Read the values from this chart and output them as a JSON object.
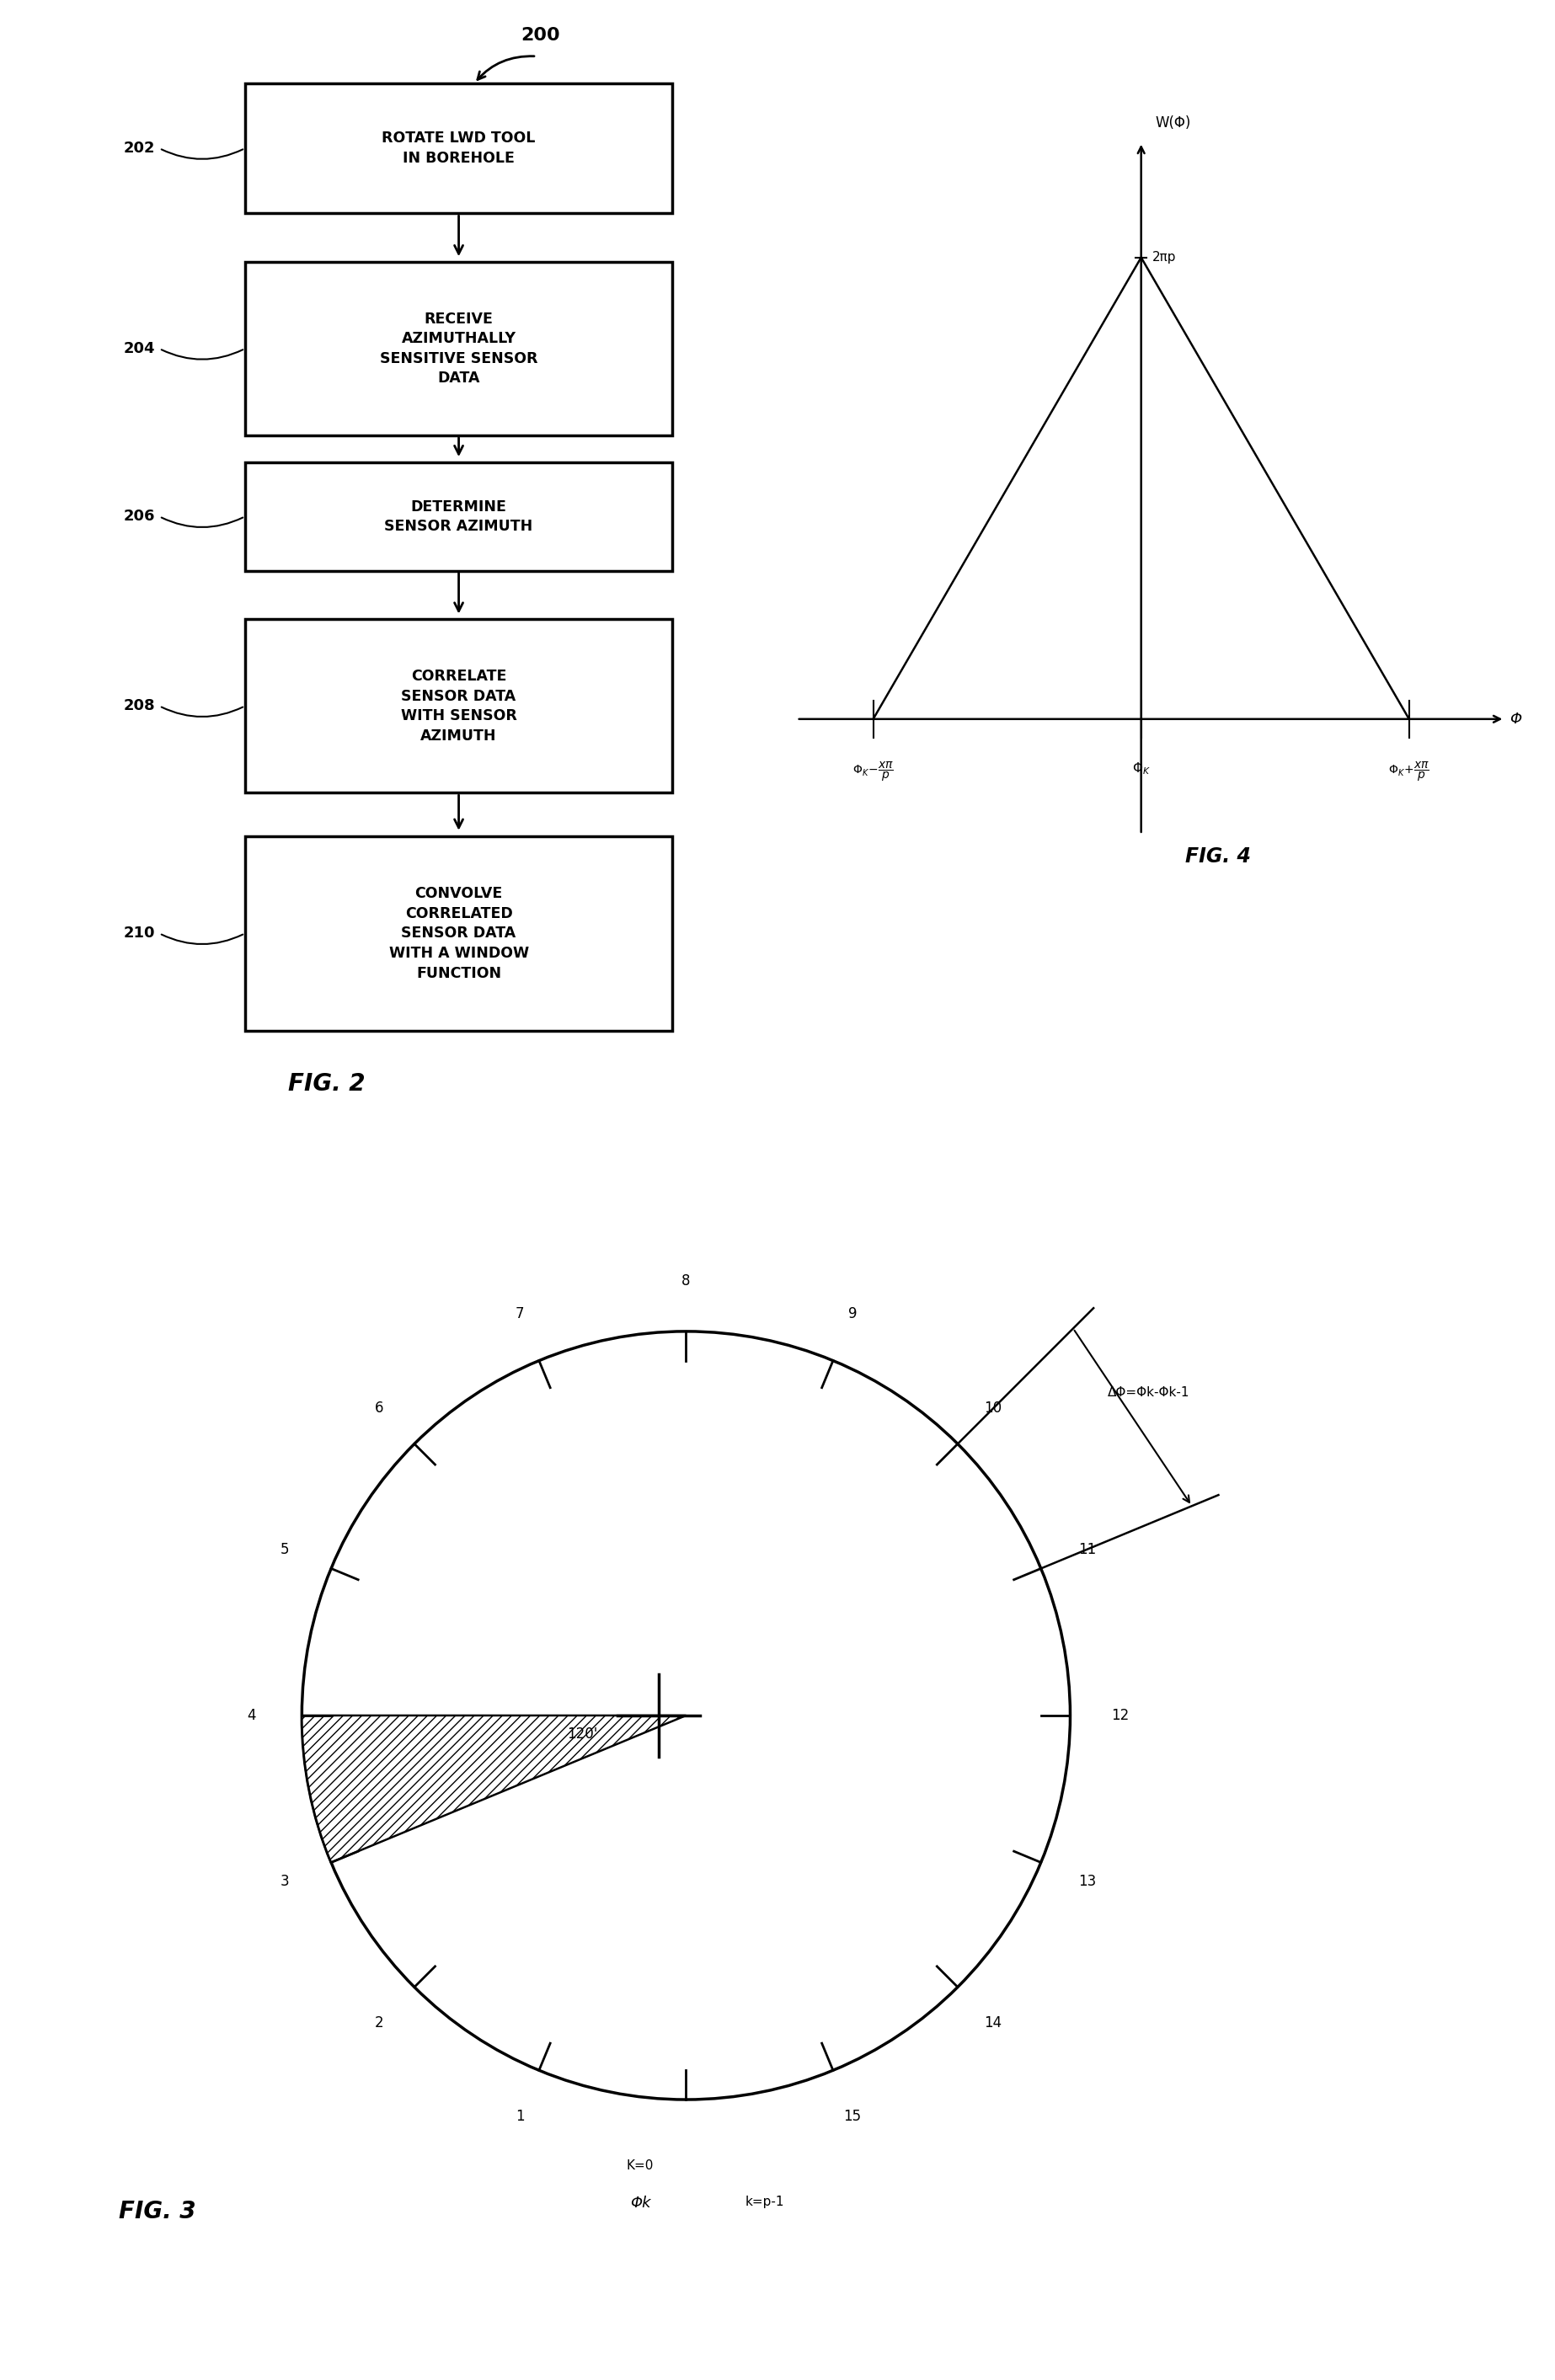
{
  "fig_width": 18.46,
  "fig_height": 28.26,
  "bg_color": "#ffffff",
  "flowchart": {
    "label_200": "200",
    "label_202": "202",
    "label_204": "204",
    "label_206": "206",
    "label_208": "208",
    "label_210": "210",
    "box1_text": "ROTATE LWD TOOL\nIN BOREHOLE",
    "box2_text": "RECEIVE\nAZIMUTHALLY\nSENSITIVE SENSOR\nDATA",
    "box3_text": "DETERMINE\nSENSOR AZIMUTH",
    "box4_text": "CORRELATE\nSENSOR DATA\nWITH SENSOR\nAZIMUTH",
    "box5_text": "CONVOLVE\nCORRELATED\nSENSOR DATA\nWITH A WINDOW\nFUNCTION",
    "fig2_label": "FIG. 2"
  },
  "fig4": {
    "title": "W(Φ)",
    "xlabel": "Φ",
    "peak_label": "2πp",
    "fig4_label": "FIG. 4"
  },
  "fig3": {
    "k0_label": "K=0",
    "phi_k_label": "Φk",
    "kp1_label": "k=p-1",
    "tick15_label": "15",
    "delta_phi_label": "ΔΦ=Φk-Φk-1",
    "sector_label": "120'",
    "fig3_label": "FIG. 3"
  }
}
